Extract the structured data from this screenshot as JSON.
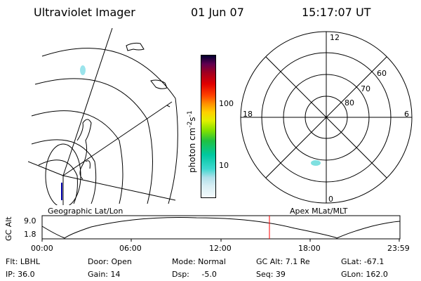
{
  "header": {
    "title": "Ultraviolet Imager",
    "date": "01 Jun 07",
    "time": "15:17:07 UT"
  },
  "geo_panel": {
    "label": "Geographic Lat/Lon"
  },
  "polar_panel": {
    "label": "Apex MLat/MLT",
    "mlt_labels": {
      "top": "12",
      "bottom": "0",
      "left": "18",
      "right": "6"
    },
    "lat_labels": [
      "60",
      "70",
      "80"
    ]
  },
  "colorbar": {
    "unit_label": "photon cm-2s-1",
    "unit_base": "photon cm",
    "unit_sup1": "-2",
    "unit_mid": "s",
    "unit_sup2": "-1",
    "ticks": [
      "100",
      "10"
    ],
    "scale": "log",
    "colors": [
      "#e8f4f8",
      "#c8e8f0",
      "#a0dce8",
      "#40d8d0",
      "#00c8a0",
      "#20c040",
      "#80e000",
      "#e0f000",
      "#ffd000",
      "#ff9000",
      "#ff4000",
      "#e00000",
      "#a00020",
      "#600050",
      "#200040",
      "#000030"
    ]
  },
  "altitude_plot": {
    "ylabel": "GC Alt",
    "yticks": [
      "9.0",
      "1.8"
    ],
    "xticks": [
      "00:00",
      "06:00",
      "12:00",
      "18:00",
      "23:59"
    ],
    "current_time_marker": "15:17",
    "marker_color": "#ff0000"
  },
  "info": {
    "row1": [
      "Flt: LBHL",
      "Door: Open",
      "Mode: Normal",
      "GC Alt: 7.1 Re",
      "GLat: -67.1"
    ],
    "row2": [
      "IP: 36.0",
      "Gain: 14",
      "Dsp:     -5.0",
      "Seq: 39",
      "GLon: 162.0"
    ]
  }
}
